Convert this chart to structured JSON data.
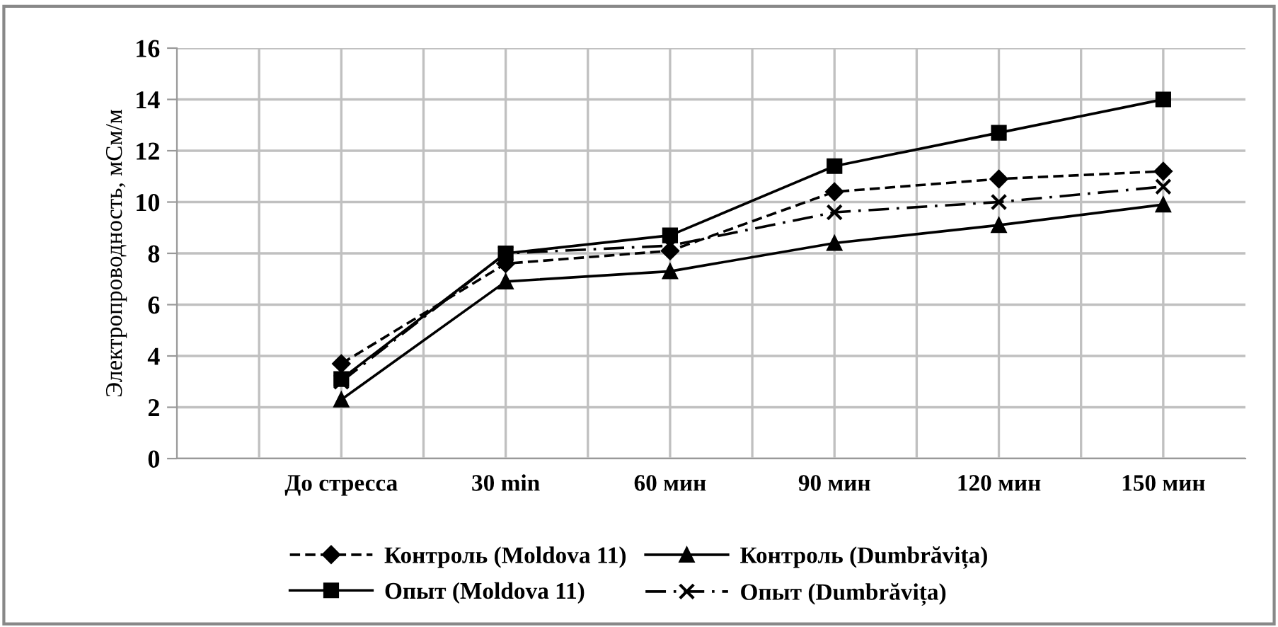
{
  "chart_data": {
    "type": "line",
    "ylabel": "Электропроводность, мСм/м",
    "categories": [
      "До стресса",
      "30 min",
      "60 мин",
      "90 мин",
      "120 мин",
      "150 мин"
    ],
    "series": [
      {
        "name": "Контроль (Moldova 11)",
        "color": "#000000",
        "marker": "diamond",
        "line_style": "dashed",
        "values": [
          3.7,
          7.6,
          8.1,
          10.4,
          10.9,
          11.2
        ]
      },
      {
        "name": "Опыт (Moldova 11)",
        "color": "#000000",
        "marker": "square",
        "line_style": "solid",
        "values": [
          3.1,
          8.0,
          8.7,
          11.4,
          12.7,
          14.0
        ]
      },
      {
        "name": "Контроль (Dumbrăvița)",
        "color": "#000000",
        "marker": "triangle",
        "line_style": "solid",
        "values": [
          2.3,
          6.9,
          7.3,
          8.4,
          9.1,
          9.9
        ]
      },
      {
        "name": "Опыт (Dumbrăvița)",
        "color": "#000000",
        "marker": "cross",
        "line_style": "dashdot",
        "values": [
          3.0,
          8.0,
          8.3,
          9.6,
          10.0,
          10.6
        ]
      }
    ],
    "ylim": [
      0,
      16
    ],
    "yticks": [
      0,
      2,
      4,
      6,
      8,
      10,
      12,
      14,
      16
    ],
    "grid": true,
    "legend": "bottom"
  }
}
